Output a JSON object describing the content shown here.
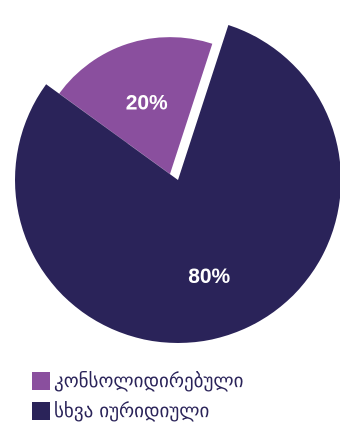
{
  "chart_data": {
    "type": "pie",
    "slices": [
      {
        "label": "კონსოლიდირებული",
        "value": 20,
        "display": "20%",
        "color": "#8a4f9e"
      },
      {
        "label": "სხვა იურიდიული",
        "value": 80,
        "display": "80%",
        "color": "#2a2359"
      }
    ],
    "legend_position": "bottom"
  }
}
